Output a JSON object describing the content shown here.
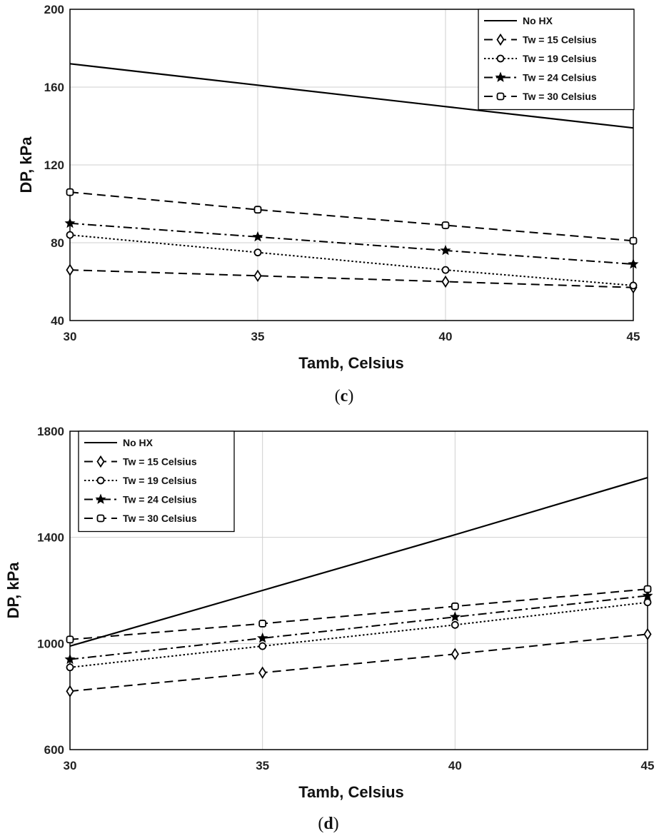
{
  "chart_data": [
    {
      "type": "line",
      "panel": "c",
      "caption_open": "(",
      "caption_letter": "c",
      "caption_close": ")",
      "xlabel": "Tamb, Celsius",
      "ylabel": "DP, kPa",
      "xlim": [
        30,
        45
      ],
      "ylim": [
        40,
        200
      ],
      "xticks": [
        30,
        35,
        40,
        45
      ],
      "yticks": [
        40,
        80,
        120,
        160,
        200
      ],
      "grid": true,
      "legend_position": "top-right",
      "x": [
        30,
        35,
        40,
        45
      ],
      "series": [
        {
          "name": "No HX",
          "style": "solid",
          "marker": "none",
          "values": [
            172,
            161,
            150,
            139
          ]
        },
        {
          "name": "Tw = 15 Celsius",
          "style": "dashed",
          "marker": "diamond",
          "values": [
            66,
            63,
            60,
            57
          ]
        },
        {
          "name": "Tw = 19 Celsius",
          "style": "dotted",
          "marker": "circle",
          "values": [
            84,
            75,
            66,
            58
          ]
        },
        {
          "name": "Tw = 24 Celsius",
          "style": "dashdot",
          "marker": "star",
          "values": [
            90,
            83,
            76,
            69
          ]
        },
        {
          "name": "Tw = 30 Celsius",
          "style": "dashed",
          "marker": "square",
          "values": [
            106,
            97,
            89,
            81
          ]
        }
      ]
    },
    {
      "type": "line",
      "panel": "d",
      "caption_open": "(",
      "caption_letter": "d",
      "caption_close": ")",
      "xlabel": "Tamb, Celsius",
      "ylabel": "DP, kPa",
      "xlim": [
        30,
        45
      ],
      "ylim": [
        600,
        1800
      ],
      "xticks": [
        30,
        35,
        40,
        45
      ],
      "yticks": [
        600,
        1000,
        1400,
        1800
      ],
      "grid": true,
      "legend_position": "top-left",
      "x": [
        30,
        35,
        40,
        45
      ],
      "series": [
        {
          "name": "No HX",
          "style": "solid",
          "marker": "none",
          "values": [
            990,
            1200,
            1410,
            1625
          ]
        },
        {
          "name": "Tw = 15 Celsius",
          "style": "dashed",
          "marker": "diamond",
          "values": [
            820,
            890,
            960,
            1035
          ]
        },
        {
          "name": "Tw = 19 Celsius",
          "style": "dotted",
          "marker": "circle",
          "values": [
            910,
            990,
            1070,
            1155
          ]
        },
        {
          "name": "Tw = 24 Celsius",
          "style": "dashdot",
          "marker": "star",
          "values": [
            940,
            1020,
            1100,
            1180
          ]
        },
        {
          "name": "Tw = 30 Celsius",
          "style": "dashed",
          "marker": "square",
          "values": [
            1015,
            1075,
            1140,
            1205
          ]
        }
      ]
    }
  ]
}
